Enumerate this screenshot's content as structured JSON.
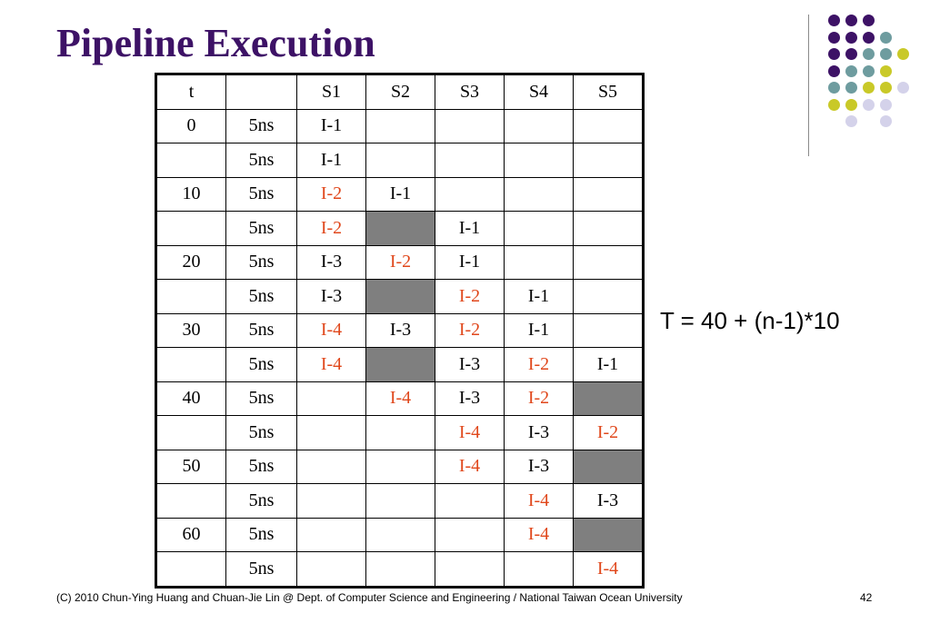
{
  "slide": {
    "title": "Pipeline Execution",
    "formula": "T = 40 + (n-1)*10",
    "footer": "(C) 2010 Chun-Ying Huang and Chuan-Jie Lin @ Dept. of Computer Science and Engineering / National Taiwan Ocean University",
    "page_number": "42"
  },
  "colors": {
    "title": "#3d1266",
    "highlight_text": "#e0471b",
    "shaded_cell": "#7f7f7f",
    "dot_purple": "#3d1266",
    "dot_teal": "#6e9c9f",
    "dot_yellow": "#c9c928",
    "dot_lavender": "#d4d2ea"
  },
  "table": {
    "headers": [
      "t",
      "",
      "S1",
      "S2",
      "S3",
      "S4",
      "S5"
    ],
    "rows": [
      {
        "t": "0",
        "dur": "5ns",
        "stages": [
          {
            "v": "I-1",
            "s": ""
          },
          {
            "v": "",
            "s": ""
          },
          {
            "v": "",
            "s": ""
          },
          {
            "v": "",
            "s": ""
          },
          {
            "v": "",
            "s": ""
          }
        ]
      },
      {
        "t": "",
        "dur": "5ns",
        "stages": [
          {
            "v": "I-1",
            "s": ""
          },
          {
            "v": "",
            "s": ""
          },
          {
            "v": "",
            "s": ""
          },
          {
            "v": "",
            "s": ""
          },
          {
            "v": "",
            "s": ""
          }
        ]
      },
      {
        "t": "10",
        "dur": "5ns",
        "stages": [
          {
            "v": "I-2",
            "s": "red"
          },
          {
            "v": "I-1",
            "s": ""
          },
          {
            "v": "",
            "s": ""
          },
          {
            "v": "",
            "s": ""
          },
          {
            "v": "",
            "s": ""
          }
        ]
      },
      {
        "t": "",
        "dur": "5ns",
        "stages": [
          {
            "v": "I-2",
            "s": "red"
          },
          {
            "v": "",
            "s": "gray"
          },
          {
            "v": "I-1",
            "s": ""
          },
          {
            "v": "",
            "s": ""
          },
          {
            "v": "",
            "s": ""
          }
        ]
      },
      {
        "t": "20",
        "dur": "5ns",
        "stages": [
          {
            "v": "I-3",
            "s": ""
          },
          {
            "v": "I-2",
            "s": "red"
          },
          {
            "v": "I-1",
            "s": ""
          },
          {
            "v": "",
            "s": ""
          },
          {
            "v": "",
            "s": ""
          }
        ]
      },
      {
        "t": "",
        "dur": "5ns",
        "stages": [
          {
            "v": "I-3",
            "s": ""
          },
          {
            "v": "",
            "s": "gray"
          },
          {
            "v": "I-2",
            "s": "red"
          },
          {
            "v": "I-1",
            "s": ""
          },
          {
            "v": "",
            "s": ""
          }
        ]
      },
      {
        "t": "30",
        "dur": "5ns",
        "stages": [
          {
            "v": "I-4",
            "s": "red"
          },
          {
            "v": "I-3",
            "s": ""
          },
          {
            "v": "I-2",
            "s": "red"
          },
          {
            "v": "I-1",
            "s": ""
          },
          {
            "v": "",
            "s": ""
          }
        ]
      },
      {
        "t": "",
        "dur": "5ns",
        "stages": [
          {
            "v": "I-4",
            "s": "red"
          },
          {
            "v": "",
            "s": "gray"
          },
          {
            "v": "I-3",
            "s": ""
          },
          {
            "v": "I-2",
            "s": "red"
          },
          {
            "v": "I-1",
            "s": ""
          }
        ]
      },
      {
        "t": "40",
        "dur": "5ns",
        "stages": [
          {
            "v": "",
            "s": ""
          },
          {
            "v": "I-4",
            "s": "red"
          },
          {
            "v": "I-3",
            "s": ""
          },
          {
            "v": "I-2",
            "s": "red"
          },
          {
            "v": "",
            "s": "gray"
          }
        ]
      },
      {
        "t": "",
        "dur": "5ns",
        "stages": [
          {
            "v": "",
            "s": ""
          },
          {
            "v": "",
            "s": ""
          },
          {
            "v": "I-4",
            "s": "red"
          },
          {
            "v": "I-3",
            "s": ""
          },
          {
            "v": "I-2",
            "s": "red"
          }
        ]
      },
      {
        "t": "50",
        "dur": "5ns",
        "stages": [
          {
            "v": "",
            "s": ""
          },
          {
            "v": "",
            "s": ""
          },
          {
            "v": "I-4",
            "s": "red"
          },
          {
            "v": "I-3",
            "s": ""
          },
          {
            "v": "",
            "s": "gray"
          }
        ]
      },
      {
        "t": "",
        "dur": "5ns",
        "stages": [
          {
            "v": "",
            "s": ""
          },
          {
            "v": "",
            "s": ""
          },
          {
            "v": "",
            "s": ""
          },
          {
            "v": "I-4",
            "s": "red"
          },
          {
            "v": "I-3",
            "s": ""
          }
        ]
      },
      {
        "t": "60",
        "dur": "5ns",
        "stages": [
          {
            "v": "",
            "s": ""
          },
          {
            "v": "",
            "s": ""
          },
          {
            "v": "",
            "s": ""
          },
          {
            "v": "I-4",
            "s": "red"
          },
          {
            "v": "",
            "s": "gray"
          }
        ]
      },
      {
        "t": "",
        "dur": "5ns",
        "stages": [
          {
            "v": "",
            "s": ""
          },
          {
            "v": "",
            "s": ""
          },
          {
            "v": "",
            "s": ""
          },
          {
            "v": "",
            "s": ""
          },
          {
            "v": "I-4",
            "s": "red"
          }
        ]
      }
    ]
  },
  "decoration": {
    "dot_grid": [
      [
        "purple",
        "purple",
        "purple",
        "",
        "",
        ""
      ],
      [
        "purple",
        "purple",
        "purple",
        "teal",
        "",
        ""
      ],
      [
        "purple",
        "purple",
        "teal",
        "teal",
        "yellow",
        ""
      ],
      [
        "purple",
        "teal",
        "teal",
        "yellow",
        "",
        ""
      ],
      [
        "teal",
        "teal",
        "yellow",
        "yellow",
        "lavender",
        ""
      ],
      [
        "yellow",
        "yellow",
        "lavender",
        "lavender",
        "",
        ""
      ],
      [
        "",
        "lavender",
        "",
        "lavender",
        "",
        ""
      ]
    ]
  }
}
